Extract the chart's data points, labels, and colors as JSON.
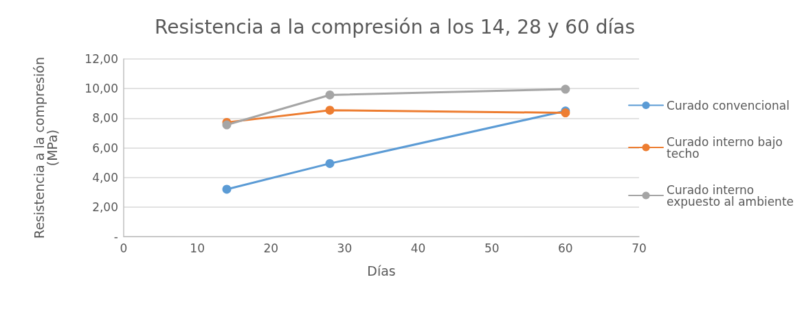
{
  "chart_data": {
    "type": "line",
    "title": "Resistencia a la compresión a los 14, 28 y 60 días",
    "xlabel": "Días",
    "ylabel": "Resistencia a la compresión\n(MPa)",
    "x": [
      14,
      28,
      60
    ],
    "series": [
      {
        "name": "Curado convencional",
        "color": "#5b9bd5",
        "values": [
          3.2,
          4.94,
          8.49
        ]
      },
      {
        "name": "Curado interno bajo techo",
        "color": "#ed7d31",
        "values": [
          7.72,
          8.54,
          8.36
        ]
      },
      {
        "name": "Curado interno expuesto al ambiente",
        "color": "#a5a5a5",
        "values": [
          7.55,
          9.57,
          9.96
        ]
      }
    ],
    "xlim": [
      0,
      70
    ],
    "xticks": [
      0,
      10,
      20,
      30,
      40,
      50,
      60,
      70
    ],
    "ylim": [
      0,
      12
    ],
    "yticks": [
      {
        "value": 0,
        "label": "-"
      },
      {
        "value": 2,
        "label": "2,00"
      },
      {
        "value": 4,
        "label": "4,00"
      },
      {
        "value": 6,
        "label": "6,00"
      },
      {
        "value": 8,
        "label": "8,00"
      },
      {
        "value": 10,
        "label": "10,00"
      },
      {
        "value": 12,
        "label": "12,00"
      }
    ],
    "grid": "y",
    "legend": "right",
    "marker": "circle",
    "line_style": "solid"
  }
}
